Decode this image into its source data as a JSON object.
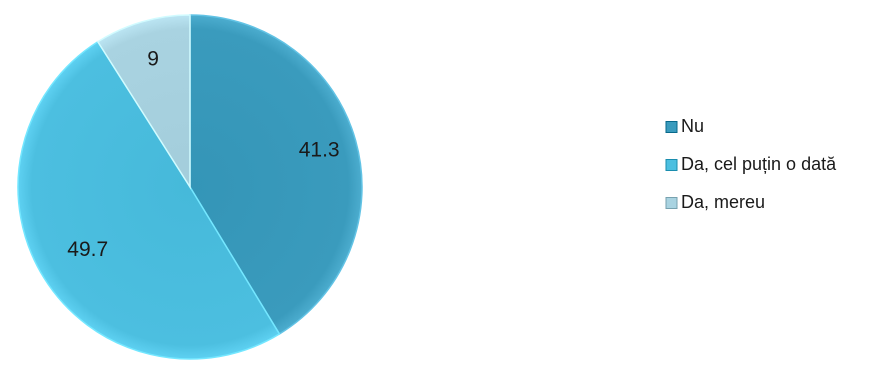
{
  "chart_data": {
    "type": "pie",
    "slices": [
      {
        "name": "Nu",
        "value": 41.3,
        "label": "41.3",
        "color": "#3a9bbd"
      },
      {
        "name": "Da, cel puțin o dată",
        "value": 49.7,
        "label": "49.7",
        "color": "#4cbfe0"
      },
      {
        "name": "Da, mereu",
        "value": 9,
        "label": "9",
        "color": "#a9d3e1"
      }
    ],
    "legend_position": "right",
    "start_angle": "12 o'clock",
    "direction": "clockwise"
  }
}
